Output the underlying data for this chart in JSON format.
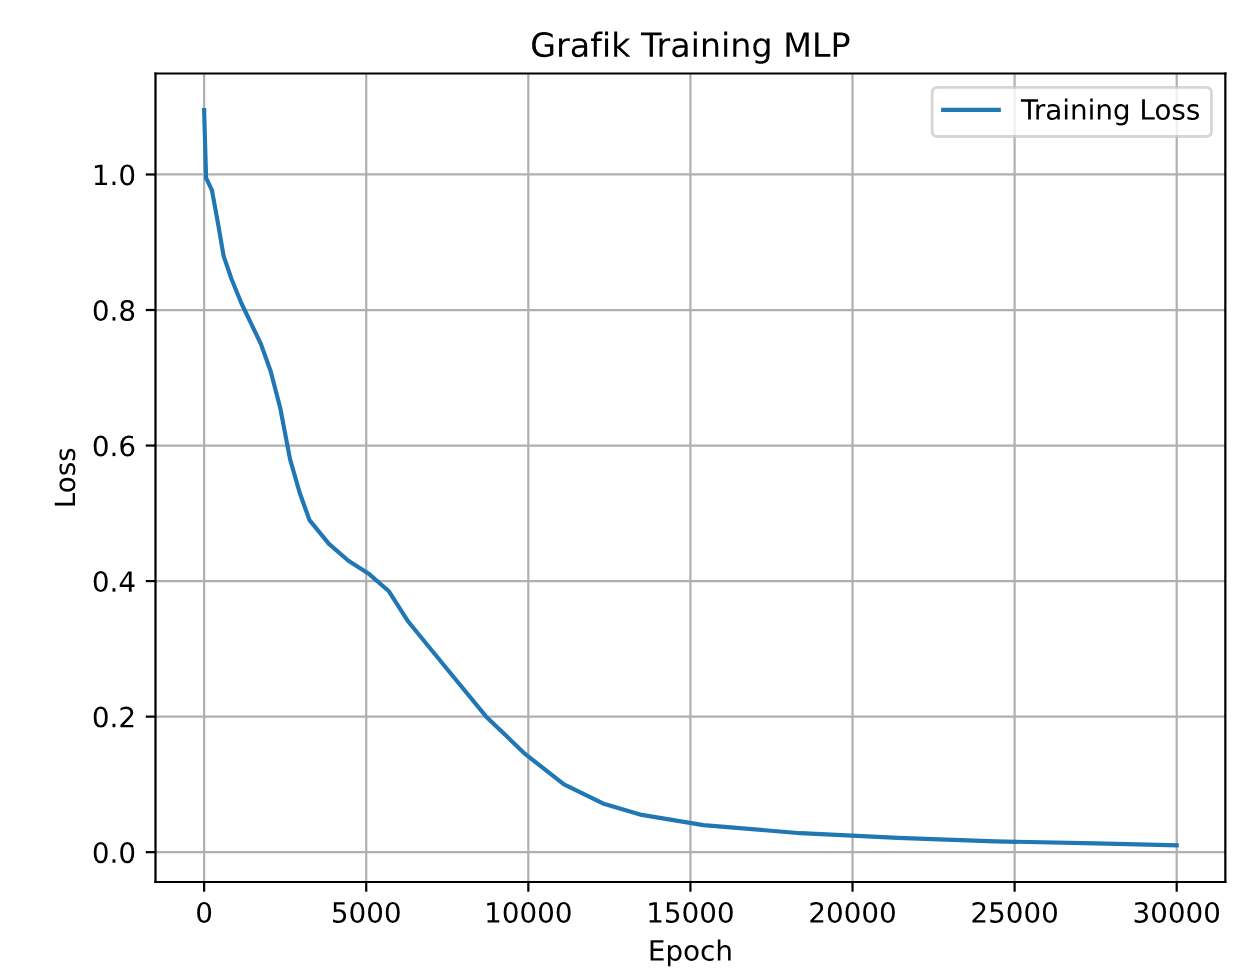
{
  "chart_data": {
    "type": "line",
    "title": "Grafik Training MLP",
    "xlabel": "Epoch",
    "ylabel": "Loss",
    "x": [
      0,
      60,
      240,
      420,
      600,
      850,
      1150,
      1450,
      1750,
      2050,
      2350,
      2650,
      2950,
      3250,
      3850,
      4450,
      5100,
      5700,
      6300,
      7500,
      8700,
      9900,
      11100,
      12300,
      13500,
      15400,
      18400,
      21400,
      24400,
      27500,
      30000
    ],
    "series": [
      {
        "name": "Training Loss",
        "color": "#1f77b4",
        "values": [
          1.095,
          0.995,
          0.977,
          0.93,
          0.88,
          0.845,
          0.81,
          0.78,
          0.75,
          0.71,
          0.655,
          0.58,
          0.53,
          0.49,
          0.455,
          0.43,
          0.41,
          0.385,
          0.34,
          0.27,
          0.2,
          0.145,
          0.1,
          0.072,
          0.055,
          0.04,
          0.028,
          0.021,
          0.016,
          0.013,
          0.01
        ]
      }
    ],
    "xlim": [
      -1500,
      31500
    ],
    "ylim": [
      -0.044,
      1.149
    ],
    "xticks": [
      0,
      5000,
      10000,
      15000,
      20000,
      25000,
      30000
    ],
    "yticks": [
      {
        "value": 0,
        "label": "0.0"
      },
      {
        "value": 0.2,
        "label": "0.2"
      },
      {
        "value": 0.4,
        "label": "0.4"
      },
      {
        "value": 0.6,
        "label": "0.6"
      },
      {
        "value": 0.8,
        "label": "0.8"
      },
      {
        "value": 1.0,
        "label": "1.0"
      }
    ],
    "grid": true,
    "legend": "top right",
    "marker": "none",
    "line_style": "solid"
  }
}
